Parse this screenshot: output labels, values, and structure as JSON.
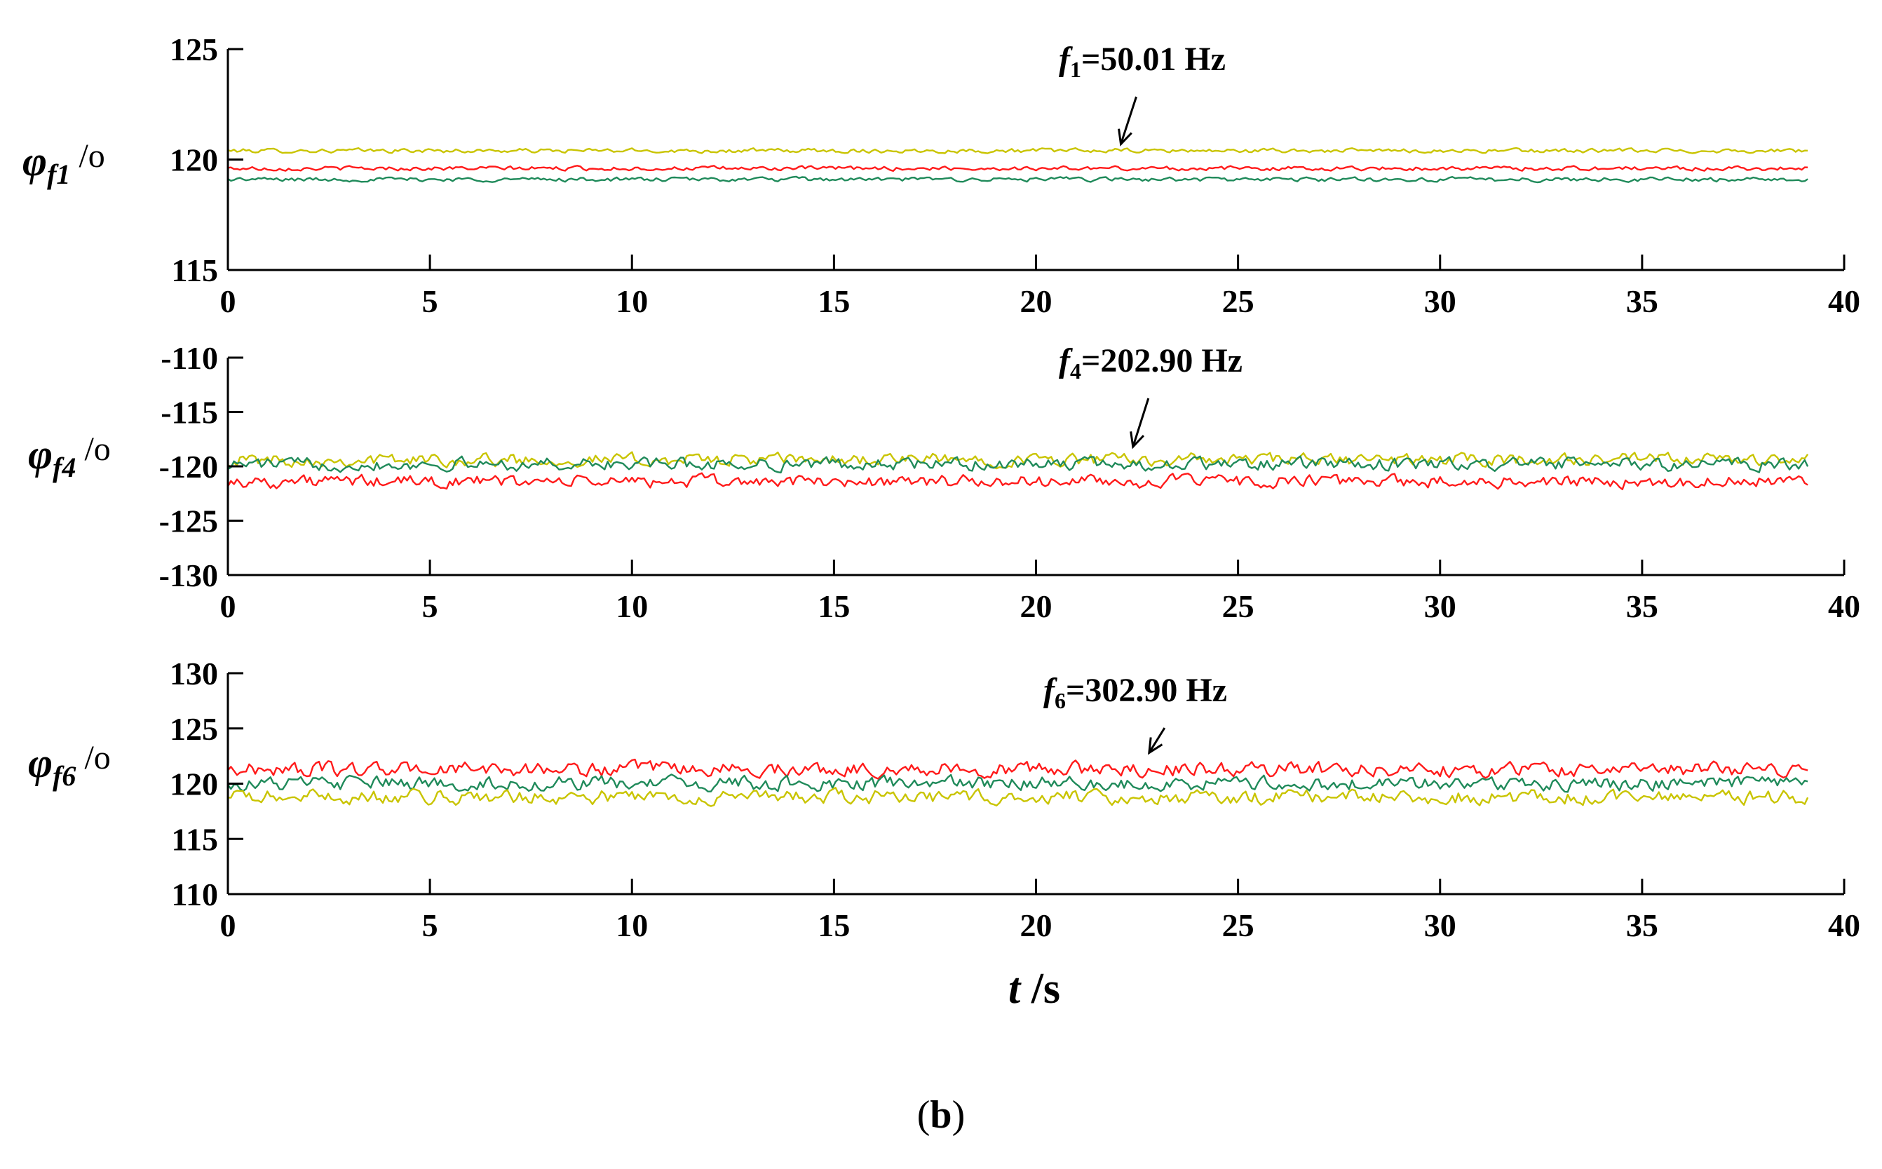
{
  "caption": {
    "open": "(",
    "letter": "b",
    "close": ")"
  },
  "chart_data": [
    {
      "type": "line",
      "ylabel": {
        "symbol": "φ",
        "sub": "f1",
        "unit": " /o"
      },
      "xlim": [
        0,
        40
      ],
      "ylim": [
        115,
        125
      ],
      "xticks": [
        0,
        5,
        10,
        15,
        20,
        25,
        30,
        35,
        40
      ],
      "yticks": [
        115,
        120,
        125
      ],
      "annotation": {
        "prefix": "f",
        "sub": "1",
        "text": "=50.01 Hz",
        "arrow_x": 22.1,
        "arrow_y": 120.7
      },
      "x_range": [
        0,
        39.1
      ],
      "series": [
        {
          "color": "#c9c400",
          "mean": 120.4,
          "noise": 0.15
        },
        {
          "color": "#ff1a1a",
          "mean": 119.6,
          "noise": 0.15
        },
        {
          "color": "#1f8a5a",
          "mean": 119.1,
          "noise": 0.15
        }
      ]
    },
    {
      "type": "line",
      "ylabel": {
        "symbol": "φ",
        "sub": "f4",
        "unit": " /o"
      },
      "xlim": [
        0,
        40
      ],
      "ylim": [
        -130,
        -110
      ],
      "xticks": [
        0,
        5,
        10,
        15,
        20,
        25,
        30,
        35,
        40
      ],
      "yticks": [
        -130,
        -125,
        -120,
        -115,
        -110
      ],
      "annotation": {
        "prefix": "f",
        "sub": "4",
        "text": "=202.90 Hz",
        "arrow_x": 22.4,
        "arrow_y": -118.2
      },
      "x_range": [
        0,
        39.1
      ],
      "series": [
        {
          "color": "#c9c400",
          "mean": -119.4,
          "noise": 0.9
        },
        {
          "color": "#1f8a5a",
          "mean": -119.8,
          "noise": 0.9
        },
        {
          "color": "#ff1a1a",
          "mean": -121.4,
          "noise": 0.9
        }
      ]
    },
    {
      "type": "line",
      "ylabel": {
        "symbol": "φ",
        "sub": "f6",
        "unit": " /o"
      },
      "xlim": [
        0,
        40
      ],
      "ylim": [
        110,
        130
      ],
      "xticks": [
        0,
        5,
        10,
        15,
        20,
        25,
        30,
        35,
        40
      ],
      "yticks": [
        110,
        115,
        120,
        125,
        130
      ],
      "annotation": {
        "prefix": "f",
        "sub": "6",
        "text": "=302.90 Hz",
        "arrow_x": 22.8,
        "arrow_y": 122.8
      },
      "x_range": [
        0,
        39.1
      ],
      "series": [
        {
          "color": "#ff1a1a",
          "mean": 121.3,
          "noise": 1.0
        },
        {
          "color": "#1f8a5a",
          "mean": 120.0,
          "noise": 1.0
        },
        {
          "color": "#c9c400",
          "mean": 118.8,
          "noise": 1.0
        }
      ]
    }
  ],
  "xlabel": {
    "symbol": "t",
    "unit": " /s"
  }
}
